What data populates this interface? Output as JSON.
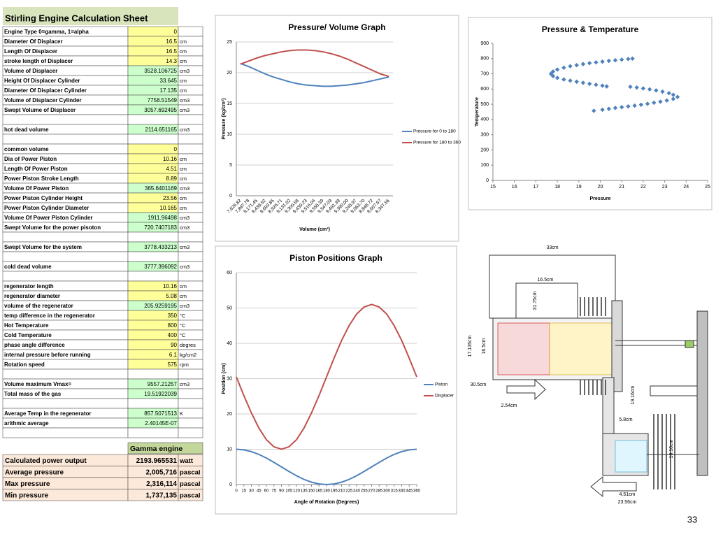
{
  "sheet": {
    "title": "Stirling Engine Calculation Sheet",
    "blocks": [
      [
        {
          "label": "Engine Type 0=gamma, 1=alpha",
          "value": "0",
          "fill": "#ffff99"
        },
        {
          "label": "Diameter Of Displacer",
          "value": "16.5",
          "unit": "cm",
          "fill": "#ffff99"
        },
        {
          "label": "Length Of Displacer",
          "value": "16.5",
          "unit": "cm",
          "fill": "#ffff99"
        },
        {
          "label": "stroke length of Displacer",
          "value": "14.3",
          "unit": "cm",
          "fill": "#ffff99"
        },
        {
          "label": "Volume of Displacer",
          "value": "3528.106725",
          "unit": "cm3",
          "fill": "#ccffcc"
        },
        {
          "label": "Height Of Displacer Cylinder",
          "value": "33.645",
          "unit": "cm",
          "fill": "#ccffcc"
        },
        {
          "label": "Diameter Of Displacer Cylinder",
          "value": "17.135",
          "unit": "cm",
          "fill": "#ccffcc"
        },
        {
          "label": "Volume of Displacer Cylinder",
          "value": "7758.51549",
          "unit": "cm3",
          "fill": "#ccffcc"
        },
        {
          "label": "Swept Volume of Displacer",
          "value": "3057.692495",
          "unit": "cm3",
          "fill": "#ccffcc"
        }
      ],
      [
        {
          "label": "hot dead volume",
          "value": "2114.651165",
          "unit": "cm3",
          "fill": "#ccffcc"
        }
      ],
      [
        {
          "label": "common volume",
          "value": "0",
          "fill": "#ffff99"
        },
        {
          "label": "Dia of Power Piston",
          "value": "10.16",
          "unit": "cm",
          "fill": "#ffff99"
        },
        {
          "label": "Length Of Power Piston",
          "value": "4.51",
          "unit": "cm",
          "fill": "#ffff99"
        },
        {
          "label": "Power Piston Stroke Length",
          "value": "8.89",
          "unit": "cm",
          "fill": "#ffff99"
        },
        {
          "label": "Volume Of Power Piston",
          "value": "365.6401169",
          "unit": "cm3",
          "fill": "#ccffcc"
        },
        {
          "label": "Power Piston Cylinder Height",
          "value": "23.56",
          "unit": "cm",
          "fill": "#ffff99"
        },
        {
          "label": "Power Piston Cylinder Diameter",
          "value": "10.165",
          "unit": "cm",
          "fill": "#ffff99"
        },
        {
          "label": "Volume Of Power Piston Cylinder",
          "value": "1911.96498",
          "unit": "cm3",
          "fill": "#ccffcc"
        },
        {
          "label": "Swept Volume for the power pisoton",
          "value": "720.7407183",
          "unit": "cm3",
          "fill": "#ccffcc"
        }
      ],
      [
        {
          "label": "Swept Volume for the system",
          "value": "3778.433213",
          "unit": "cm3",
          "fill": "#ccffcc"
        }
      ],
      [
        {
          "label": "cold dead volume",
          "value": "3777.396092",
          "unit": "cm3",
          "fill": "#ccffcc"
        }
      ],
      [
        {
          "label": "regenerator length",
          "value": "10.16",
          "unit": "cm",
          "fill": "#ffff99"
        },
        {
          "label": "regenerator diameter",
          "value": "5.08",
          "unit": "cm",
          "fill": "#ffff99"
        },
        {
          "label": "volume of the regenerator",
          "value": "205.9259195",
          "unit": "cm3",
          "fill": "#ccffcc"
        },
        {
          "label": "temp difference in the regenerator",
          "value": "350",
          "unit": "°C",
          "fill": "#ffff99"
        },
        {
          "label": "Hot Temperature",
          "value": "800",
          "unit": "°C",
          "fill": "#ffff99"
        },
        {
          "label": "Cold Temperature",
          "value": "400",
          "unit": "°C",
          "fill": "#ffff99"
        },
        {
          "label": "phase angle difference",
          "value": "90",
          "unit": "degres",
          "fill": "#ffff99"
        },
        {
          "label": "internal pressure before running",
          "value": "6.1",
          "unit": "kg/cm2",
          "fill": "#ffff99"
        },
        {
          "label": "Rotation speed",
          "value": "575",
          "unit": "rpm",
          "fill": "#ffff99"
        }
      ],
      [
        {
          "label": "Volume maximum Vmax=",
          "value": "9557.21257",
          "unit": "cm3",
          "fill": "#ccffcc"
        },
        {
          "label": "Total mass of the gas",
          "value": "19.51922039",
          "fill": "#ccffcc"
        }
      ],
      [
        {
          "label": "Average Temp in the regenerator",
          "value": "857.5071513",
          "unit": "K",
          "fill": "#ccffcc"
        },
        {
          "label": "arithmic average",
          "value": "2.40145E-07",
          "fill": "#ccffcc"
        }
      ]
    ]
  },
  "results": {
    "header": "Gamma engine",
    "rows": [
      {
        "label": "Calculated power output",
        "value": "2193.965531",
        "unit": "watt"
      },
      {
        "label": "Average pressure",
        "value": "2,005,716",
        "unit": "pascal"
      },
      {
        "label": "Max pressure",
        "value": "2,316,114",
        "unit": "pascal"
      },
      {
        "label": "Min pressure",
        "value": "1,737,135",
        "unit": "pascal"
      }
    ]
  },
  "chart_data": [
    {
      "type": "line",
      "title": "Pressure/ Volume Graph",
      "x_label": "Volume (cm³)",
      "y_label": "Pressure (kg/cm²)",
      "categories": [
        "7,626.82",
        "7,897.78",
        "8,171.45",
        "8,439.52",
        "8,693.85",
        "8,926.71",
        "9,131.02",
        "9,300.58",
        "9,430.23",
        "9,516.04",
        "9,555.39",
        "9,547.09",
        "9,491.39",
        "9,390.00",
        "9,245.97",
        "9,063.70",
        "8,848.72",
        "8,607.57",
        "8,347.56"
      ],
      "series": [
        {
          "name": "Pressure for 0 to 180",
          "color": "#4f81bd",
          "values": [
            21.5,
            21.0,
            20.4,
            19.8,
            19.3,
            18.9,
            18.5,
            18.2,
            18.0,
            17.9,
            17.8,
            17.8,
            17.9,
            18.0,
            18.2,
            18.4,
            18.7,
            19.0,
            19.3
          ]
        },
        {
          "name": "Pressure for 180 to 360",
          "color": "#c0504d",
          "values": [
            21.4,
            21.9,
            22.4,
            22.8,
            23.1,
            23.4,
            23.6,
            23.7,
            23.7,
            23.6,
            23.4,
            23.1,
            22.7,
            22.2,
            21.6,
            21.0,
            20.4,
            19.8,
            19.4
          ]
        }
      ],
      "ylim": [
        0,
        25
      ],
      "yticks": [
        0,
        5,
        10,
        15,
        20,
        25
      ],
      "grid": true,
      "legend": "right"
    },
    {
      "type": "scatter",
      "title": "Pressure & Temperature",
      "x_label": "Pressure",
      "y_label": "Temperature",
      "x": [
        21.5,
        21.3,
        21.0,
        20.7,
        20.4,
        20.1,
        19.8,
        19.5,
        19.2,
        18.9,
        18.6,
        18.3,
        18.0,
        17.8,
        17.7,
        17.8,
        18.0,
        18.3,
        18.6,
        18.9,
        19.2,
        19.5,
        19.8,
        20.1,
        20.3,
        21.4,
        21.7,
        22.0,
        22.3,
        22.6,
        22.9,
        23.2,
        23.4,
        23.6,
        23.4,
        23.1,
        22.8,
        22.5,
        22.2,
        21.9,
        21.6,
        21.3,
        21.0,
        20.7,
        20.4,
        20.1,
        19.7
      ],
      "values": [
        800,
        797,
        793,
        789,
        785,
        780,
        775,
        770,
        764,
        757,
        750,
        740,
        728,
        715,
        700,
        685,
        673,
        663,
        655,
        648,
        641,
        634,
        628,
        622,
        617,
        615,
        610,
        604,
        598,
        591,
        583,
        573,
        562,
        548,
        535,
        525,
        517,
        510,
        503,
        497,
        491,
        486,
        481,
        476,
        470,
        464,
        457
      ],
      "color": "#4f81bd",
      "xlim": [
        15,
        25
      ],
      "xticks": [
        15,
        16,
        17,
        18,
        19,
        20,
        21,
        22,
        23,
        24,
        25
      ],
      "ylim": [
        0,
        900
      ],
      "yticks": [
        0,
        100,
        200,
        300,
        400,
        500,
        600,
        700,
        800,
        900
      ],
      "grid": false
    },
    {
      "type": "line",
      "title": "Piston Positions Graph",
      "x_label": "Angle of Rotation (Degrees)",
      "y_label": "Position (cm)",
      "x": [
        0,
        15,
        30,
        45,
        60,
        75,
        90,
        105,
        120,
        135,
        150,
        165,
        180,
        195,
        210,
        225,
        240,
        255,
        270,
        285,
        300,
        315,
        330,
        345,
        360
      ],
      "series": [
        {
          "name": "Piston",
          "color": "#4f81bd",
          "values": [
            10,
            9.83,
            9.33,
            8.54,
            7.5,
            6.29,
            5,
            3.71,
            2.5,
            1.46,
            0.67,
            0.17,
            0,
            0.17,
            0.67,
            1.46,
            2.5,
            3.71,
            5,
            6.29,
            7.5,
            8.54,
            9.33,
            9.83,
            10
          ]
        },
        {
          "name": "Displacer",
          "color": "#c0504d",
          "values": [
            30.5,
            25.2,
            20.3,
            16.0,
            12.7,
            10.7,
            10.0,
            10.7,
            12.7,
            16.0,
            20.3,
            25.2,
            30.5,
            35.8,
            40.8,
            45.0,
            48.3,
            50.3,
            51.0,
            50.3,
            48.3,
            45.0,
            40.8,
            35.8,
            30.5
          ]
        }
      ],
      "xlim": [
        0,
        360
      ],
      "xticks": [
        0,
        15,
        30,
        45,
        60,
        75,
        90,
        105,
        120,
        135,
        150,
        165,
        180,
        195,
        210,
        225,
        240,
        255,
        270,
        285,
        300,
        315,
        330,
        345,
        360
      ],
      "ylim": [
        0,
        60
      ],
      "yticks": [
        0,
        10,
        20,
        30,
        40,
        50,
        60
      ],
      "grid": true,
      "legend": "right"
    }
  ],
  "diagram": {
    "labels": [
      "33cm",
      "16.5cm",
      "31.75cm",
      "17.135cm",
      "16.5cm",
      "30.5cm",
      "2.54cm",
      "19.16cm",
      "5.8cm",
      "10.16cm",
      "4.51cm",
      "23.56cm"
    ]
  },
  "page_number": "33"
}
